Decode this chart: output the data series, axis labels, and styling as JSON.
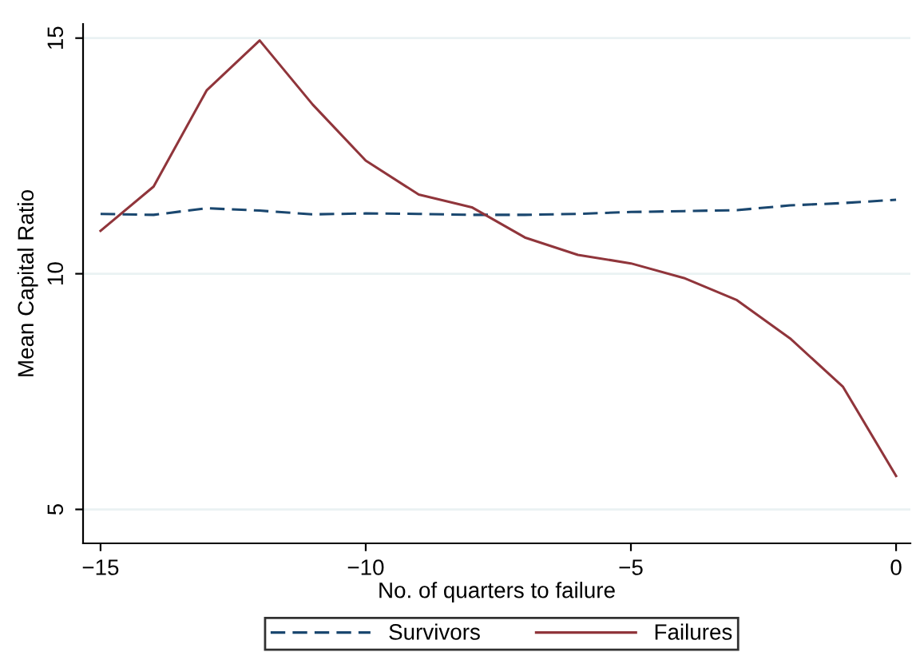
{
  "chart_data": {
    "type": "line",
    "xlabel": "No. of quarters to failure",
    "ylabel": "Mean Capital Ratio",
    "x": [
      -15,
      -14,
      -13,
      -12,
      -11,
      -10,
      -9,
      -8,
      -7,
      -6,
      -5,
      -4,
      -3,
      -2,
      -1,
      0
    ],
    "series": [
      {
        "name": "Survivors",
        "color": "#1a476f",
        "line_style": "dashed",
        "values": [
          11.27,
          11.25,
          11.39,
          11.34,
          11.26,
          11.28,
          11.27,
          11.25,
          11.25,
          11.27,
          11.31,
          11.33,
          11.35,
          11.45,
          11.5,
          11.57
        ]
      },
      {
        "name": "Failures",
        "color": "#90353b",
        "line_style": "solid",
        "values": [
          10.91,
          11.85,
          13.89,
          14.95,
          13.59,
          12.4,
          11.68,
          11.41,
          10.77,
          10.4,
          10.22,
          9.91,
          9.44,
          8.63,
          7.6,
          5.71
        ]
      }
    ],
    "xlim": [
      -15.33,
      0.27
    ],
    "ylim": [
      4.28,
      15.3
    ],
    "xticks": [
      {
        "value": -15,
        "label": "−15"
      },
      {
        "value": -10,
        "label": "−10"
      },
      {
        "value": -5,
        "label": "−5"
      },
      0
    ],
    "yticks": [
      5,
      10,
      15
    ],
    "grid": "y",
    "legend": "bottom"
  }
}
